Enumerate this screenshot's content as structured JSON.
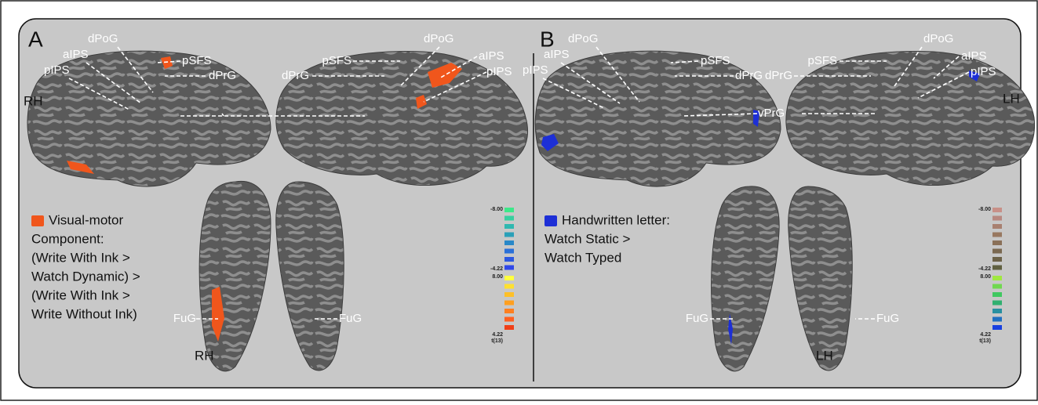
{
  "panels": [
    {
      "letter": "A",
      "regions": [
        "dPoG",
        "aIPS",
        "pIPS",
        "pSFS",
        "dPrG",
        "pSFS",
        "dPrG",
        "dPoG",
        "aIPS",
        "pIPS",
        "FuG",
        "FuG"
      ],
      "hemi_labels": [
        "RH",
        "RH"
      ],
      "legend": [
        "Visual-motor",
        "Component:",
        "(Write With Ink >",
        "Watch Dynamic) >",
        "(Write With Ink >",
        "Write Without Ink)"
      ],
      "colorbar": [
        "-8.00",
        "-4.22",
        "8.00",
        "4.22",
        "t(13)"
      ]
    },
    {
      "letter": "B",
      "regions": [
        "dPoG",
        "aIPS",
        "pIPS",
        "pSFS",
        "dPrG",
        "vPrG",
        "pSFS",
        "dPrG",
        "dPoG",
        "aIPS",
        "pIPS",
        "FuG",
        "FuG"
      ],
      "hemi_labels": [
        "LH",
        "LH"
      ],
      "legend": [
        "Handwritten letter:",
        "Watch Static >",
        "Watch Typed"
      ],
      "colorbar": [
        "-8.00",
        "-4.22",
        "8.00",
        "4.22",
        "t(13)"
      ]
    }
  ]
}
